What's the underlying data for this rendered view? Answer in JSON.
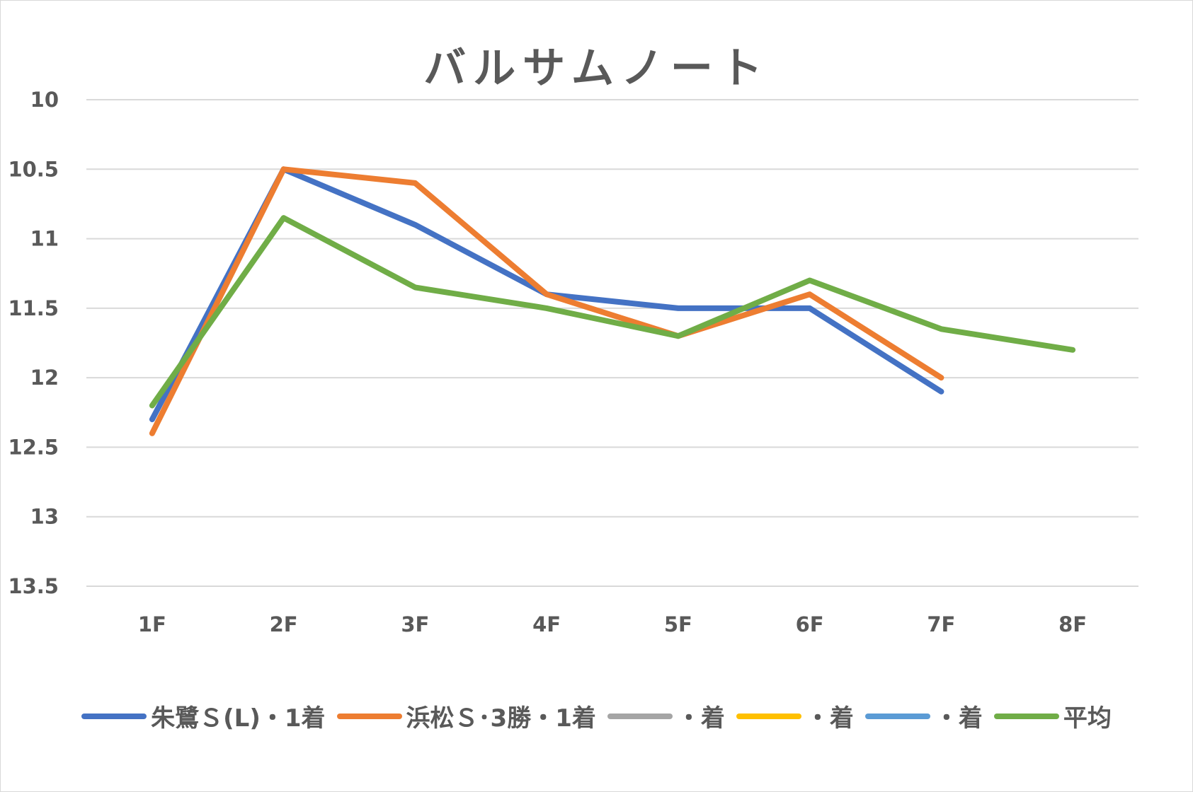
{
  "chart_data": {
    "type": "line",
    "title": "バルサムノート",
    "xlabel": "",
    "ylabel": "",
    "categories": [
      "1F",
      "2F",
      "3F",
      "4F",
      "5F",
      "6F",
      "7F",
      "8F"
    ],
    "ylim": [
      10,
      13.5
    ],
    "y_inverted": true,
    "y_ticks": [
      "10",
      "10.5",
      "11",
      "11.5",
      "12",
      "12.5",
      "13",
      "13.5"
    ],
    "grid": true,
    "legend_position": "bottom",
    "series": [
      {
        "name": "朱鷺Ｓ(L)・1着",
        "color": "#4472c4",
        "values": [
          12.3,
          10.5,
          10.9,
          11.4,
          11.5,
          11.5,
          12.1,
          null
        ]
      },
      {
        "name": "浜松Ｓ･3勝・1着",
        "color": "#ed7d31",
        "values": [
          12.4,
          10.5,
          10.6,
          11.4,
          11.7,
          11.4,
          12.0,
          null
        ]
      },
      {
        "name": "・着",
        "color": "#a5a5a5",
        "values": [
          null,
          null,
          null,
          null,
          null,
          null,
          null,
          null
        ]
      },
      {
        "name": "・着",
        "color": "#ffc000",
        "values": [
          null,
          null,
          null,
          null,
          null,
          null,
          null,
          null
        ]
      },
      {
        "name": "・着",
        "color": "#5b9bd5",
        "values": [
          null,
          null,
          null,
          null,
          null,
          null,
          null,
          null
        ]
      },
      {
        "name": "平均",
        "color": "#70ad47",
        "values": [
          12.2,
          10.85,
          11.35,
          11.5,
          11.7,
          11.3,
          11.65,
          11.8
        ]
      }
    ]
  }
}
